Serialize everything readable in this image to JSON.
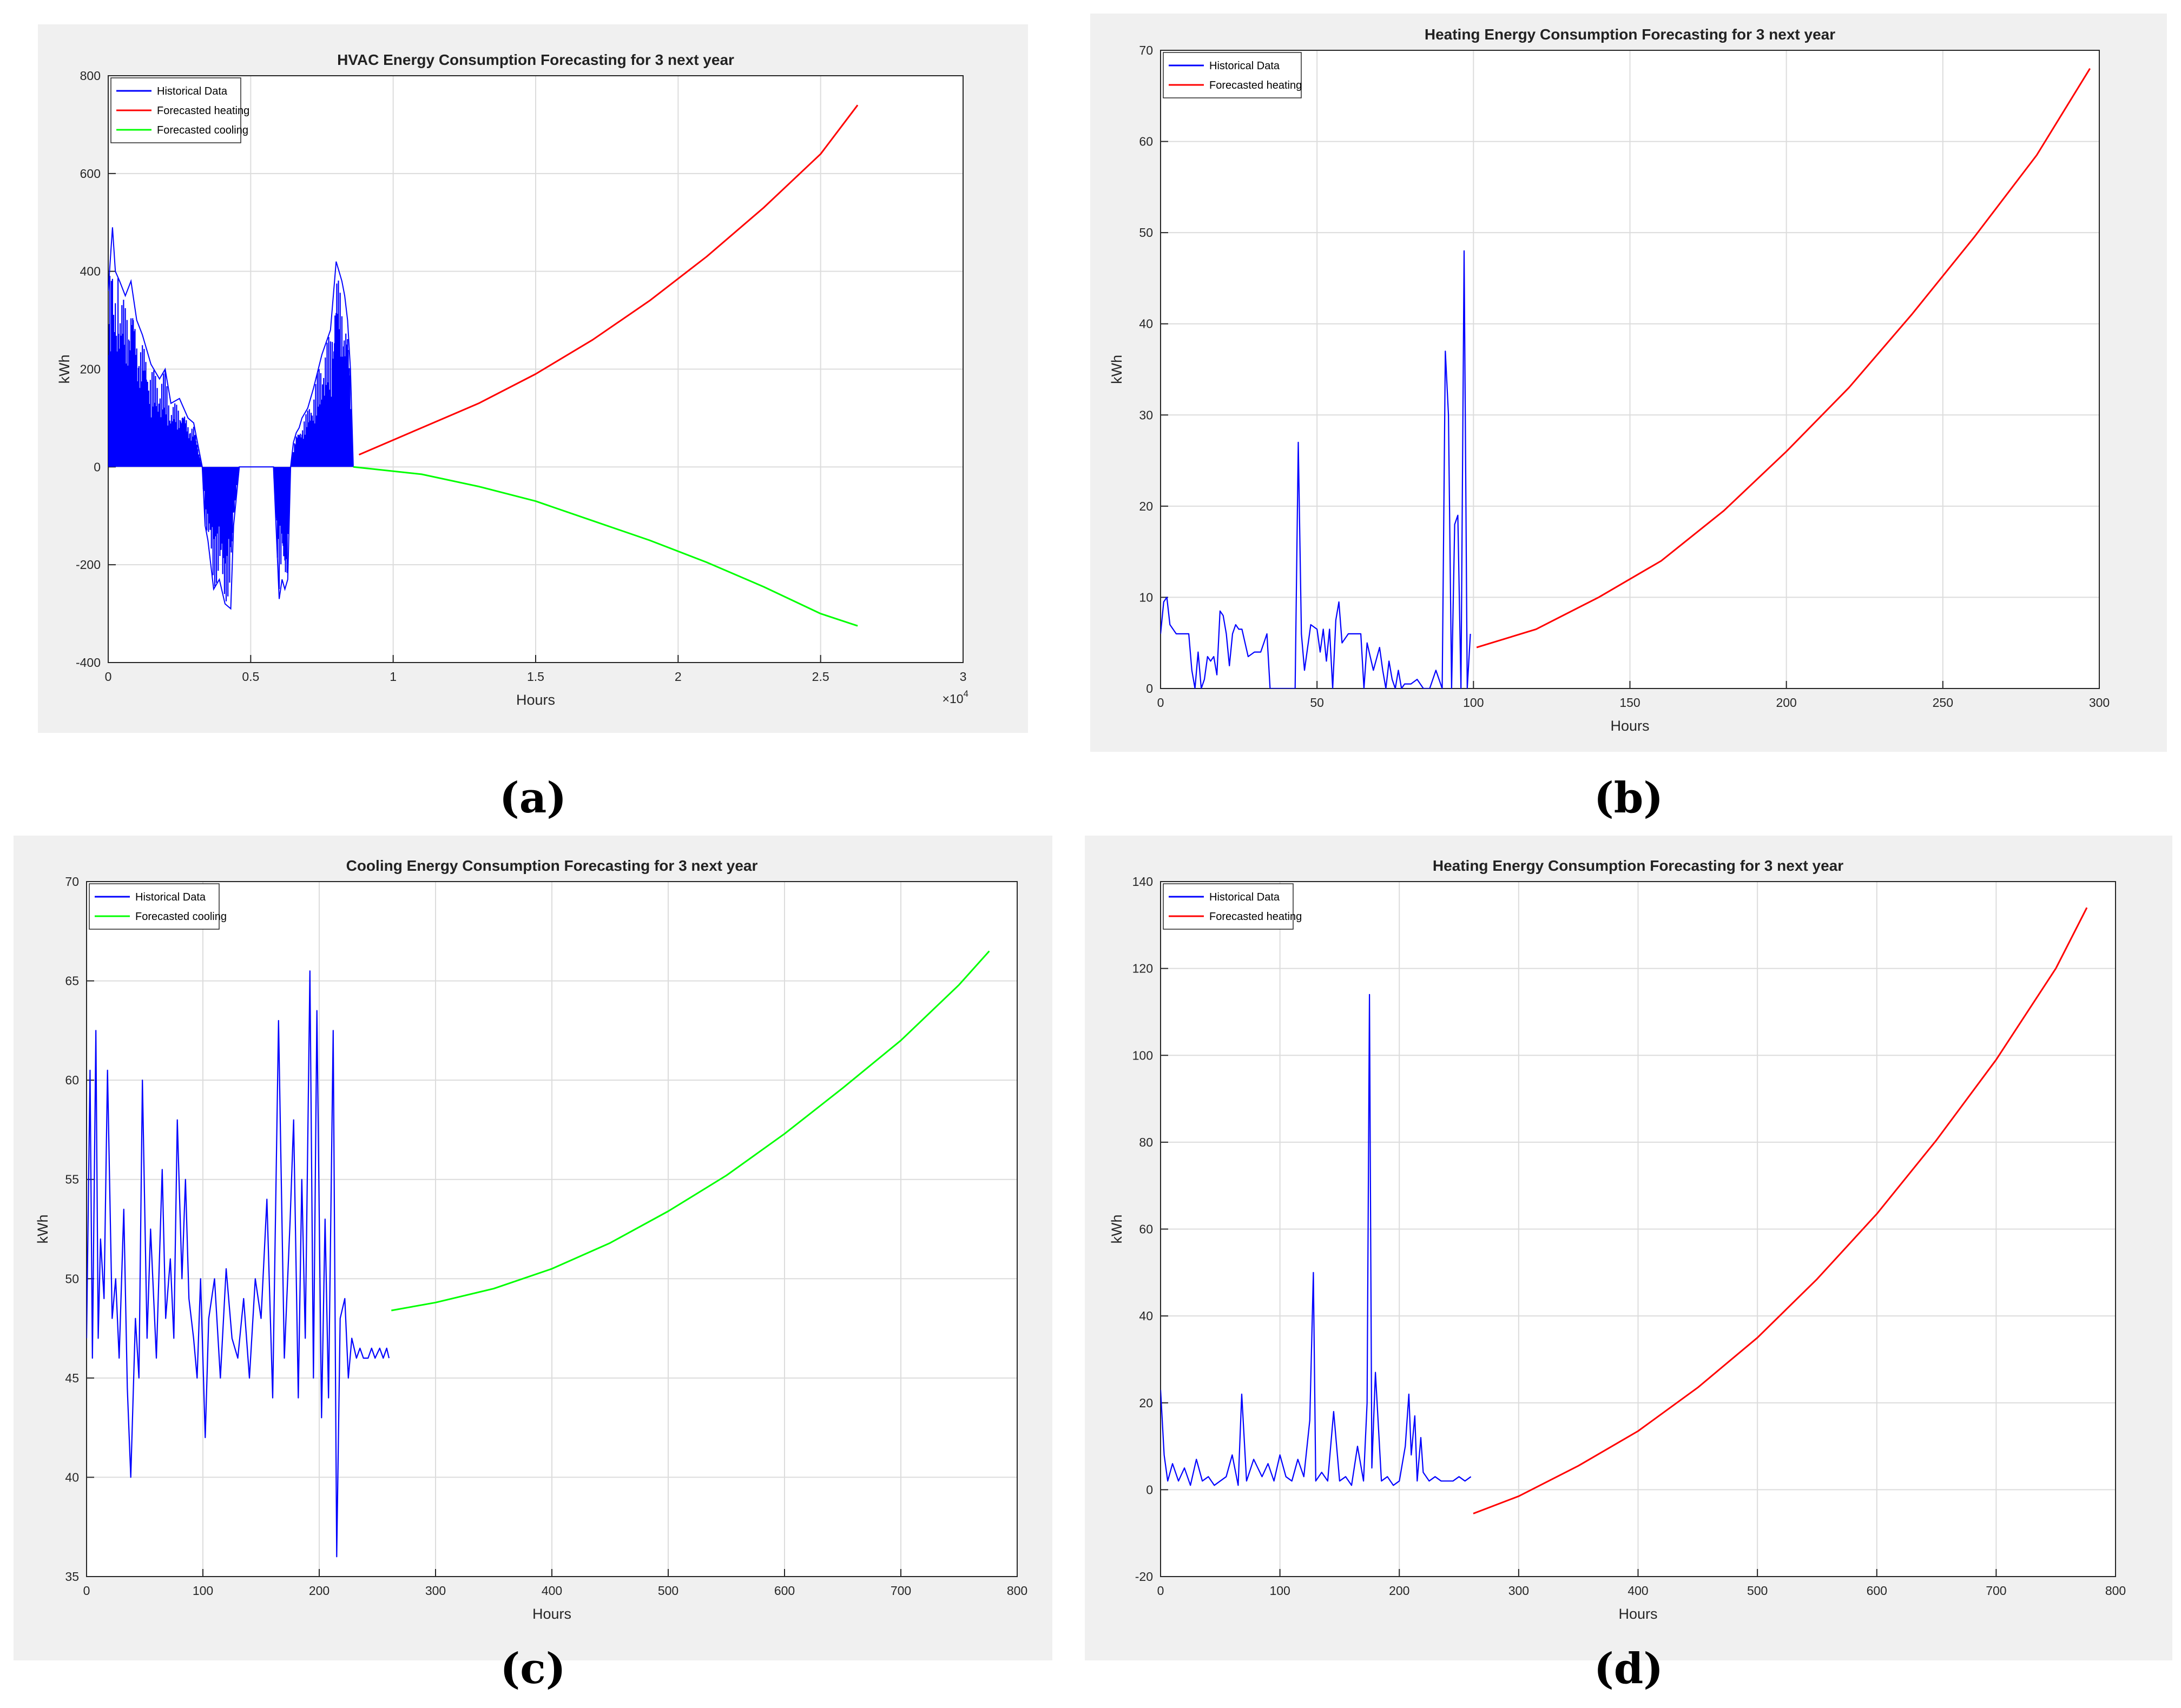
{
  "captions": [
    "(a)",
    "(b)",
    "(c)",
    "(d)"
  ],
  "chart_data": [
    {
      "id": "a",
      "type": "line",
      "title": "HVAC Energy Consumption Forecasting for 3 next year",
      "xlabel": "Hours",
      "ylabel": "kWh",
      "xlim": [
        0,
        30000
      ],
      "ylim": [
        -400,
        800
      ],
      "xticks": [
        0,
        5000,
        10000,
        15000,
        20000,
        25000,
        30000
      ],
      "xtick_labels": [
        "0",
        "0.5",
        "1",
        "1.5",
        "2",
        "2.5",
        "3"
      ],
      "x_exponent_label": "×10",
      "x_exponent_power": "4",
      "yticks": [
        -400,
        -200,
        0,
        200,
        400,
        600,
        800
      ],
      "grid": true,
      "legend_position": "top-left",
      "series": [
        {
          "name": "Historical Data",
          "color": "#0000ff",
          "style": "dense",
          "x": [
            0,
            150,
            250,
            400,
            600,
            800,
            1000,
            1200,
            1500,
            1800,
            2000,
            2200,
            2500,
            2800,
            3000,
            3200,
            3300,
            3400,
            3500,
            3700,
            3900,
            4100,
            4300,
            4400,
            4500,
            4600,
            4700,
            5000,
            5500,
            5800,
            6000,
            6100,
            6200,
            6300,
            6400,
            6500,
            6600,
            6700,
            6800,
            7000,
            7200,
            7500,
            7800,
            8000,
            8100,
            8200,
            8300,
            8400,
            8500,
            8600
          ],
          "y": [
            360,
            490,
            400,
            380,
            350,
            380,
            300,
            270,
            210,
            180,
            200,
            130,
            140,
            100,
            90,
            30,
            0,
            -120,
            -150,
            -250,
            -230,
            -280,
            -290,
            -120,
            -60,
            0,
            0,
            0,
            0,
            0,
            -270,
            -230,
            -250,
            -230,
            0,
            50,
            70,
            80,
            100,
            120,
            160,
            230,
            280,
            420,
            400,
            380,
            350,
            300,
            200,
            0
          ]
        },
        {
          "name": "Forecasted heating",
          "color": "#ff0000",
          "style": "smooth",
          "x": [
            8800,
            11000,
            13000,
            15000,
            17000,
            19000,
            21000,
            23000,
            25000,
            26300
          ],
          "y": [
            25,
            80,
            130,
            190,
            260,
            340,
            430,
            530,
            640,
            740
          ]
        },
        {
          "name": "Forecasted cooling",
          "color": "#00ff00",
          "style": "smooth",
          "x": [
            8600,
            11000,
            13000,
            15000,
            17000,
            19000,
            21000,
            23000,
            25000,
            26300
          ],
          "y": [
            0,
            -15,
            -40,
            -70,
            -110,
            -150,
            -195,
            -245,
            -300,
            -325
          ]
        }
      ]
    },
    {
      "id": "b",
      "type": "line",
      "title": "Heating Energy Consumption Forecasting for 3 next year",
      "xlabel": "Hours",
      "ylabel": "kWh",
      "xlim": [
        0,
        300
      ],
      "ylim": [
        0,
        70
      ],
      "xticks": [
        0,
        50,
        100,
        150,
        200,
        250,
        300
      ],
      "xtick_labels": [
        "0",
        "50",
        "100",
        "150",
        "200",
        "250",
        "300"
      ],
      "yticks": [
        0,
        10,
        20,
        30,
        40,
        50,
        60,
        70
      ],
      "grid": true,
      "legend_position": "top-left",
      "series": [
        {
          "name": "Historical Data",
          "color": "#0000ff",
          "style": "line",
          "x": [
            0,
            1,
            2,
            3,
            4,
            5,
            7,
            9,
            10,
            11,
            12,
            13,
            14,
            15,
            16,
            17,
            18,
            19,
            20,
            21,
            22,
            23,
            24,
            25,
            26,
            28,
            30,
            32,
            33,
            34,
            35,
            38,
            40,
            42,
            43,
            44,
            45,
            46,
            48,
            50,
            51,
            52,
            53,
            54,
            55,
            56,
            57,
            58,
            60,
            62,
            63,
            64,
            65,
            66,
            68,
            70,
            71,
            72,
            73,
            74,
            75,
            76,
            77,
            78,
            80,
            82,
            84,
            86,
            88,
            90,
            91,
            92,
            93,
            94,
            95,
            96,
            97,
            98,
            99
          ],
          "y": [
            6,
            9.5,
            10,
            7,
            6.5,
            6,
            6,
            6,
            2,
            0,
            4,
            0,
            1,
            3.5,
            3,
            3.5,
            1.5,
            8.5,
            8,
            6,
            2.5,
            6,
            7,
            6.5,
            6.5,
            3.5,
            4,
            4,
            5,
            6,
            0,
            0,
            0,
            0,
            0,
            27,
            6,
            2,
            7,
            6.5,
            4,
            6.5,
            3,
            6.5,
            0,
            7.5,
            9.5,
            5,
            6,
            6,
            6,
            6,
            0,
            5,
            2,
            4.5,
            2,
            0,
            3,
            1,
            0,
            2,
            0,
            0.5,
            0.5,
            1,
            0,
            0,
            2,
            0,
            37,
            30,
            0,
            18,
            19,
            0,
            48,
            0,
            6
          ]
        },
        {
          "name": "Forecasted heating",
          "color": "#ff0000",
          "style": "smooth",
          "x": [
            101,
            120,
            140,
            160,
            180,
            200,
            220,
            240,
            260,
            280,
            297
          ],
          "y": [
            4.5,
            6.5,
            10,
            14,
            19.5,
            26,
            33,
            41,
            49.5,
            58.5,
            68
          ]
        }
      ]
    },
    {
      "id": "c",
      "type": "line",
      "title": "Cooling Energy Consumption Forecasting for 3 next year",
      "xlabel": "Hours",
      "ylabel": "kWh",
      "xlim": [
        0,
        800
      ],
      "ylim": [
        35,
        70
      ],
      "xticks": [
        0,
        100,
        200,
        300,
        400,
        500,
        600,
        700,
        800
      ],
      "xtick_labels": [
        "0",
        "100",
        "200",
        "300",
        "400",
        "500",
        "600",
        "700",
        "800"
      ],
      "yticks": [
        35,
        40,
        45,
        50,
        55,
        60,
        65,
        70
      ],
      "grid": true,
      "legend_position": "top-left",
      "series": [
        {
          "name": "Historical Data",
          "color": "#0000ff",
          "style": "line",
          "x": [
            0,
            3,
            5,
            8,
            10,
            12,
            15,
            18,
            22,
            25,
            28,
            32,
            35,
            38,
            42,
            45,
            48,
            52,
            55,
            60,
            65,
            68,
            72,
            75,
            78,
            82,
            85,
            88,
            92,
            95,
            98,
            102,
            105,
            110,
            115,
            120,
            125,
            130,
            135,
            140,
            145,
            150,
            155,
            160,
            165,
            170,
            175,
            178,
            182,
            185,
            188,
            192,
            195,
            198,
            202,
            205,
            208,
            212,
            215,
            218,
            222,
            225,
            228,
            232,
            235,
            238,
            242,
            245,
            248,
            252,
            255,
            258,
            260
          ],
          "y": [
            47,
            60.5,
            46,
            62.5,
            47,
            52,
            49,
            60.5,
            48,
            50,
            46,
            53.5,
            44.5,
            40,
            48,
            45,
            60,
            47,
            52.5,
            46,
            55.5,
            48,
            51,
            47,
            58,
            50,
            55,
            49,
            47,
            45,
            50,
            42,
            48,
            50,
            45,
            50.5,
            47,
            46,
            49,
            45,
            50,
            48,
            54,
            44,
            63,
            46,
            53,
            58,
            44,
            55,
            47,
            65.5,
            45,
            63.5,
            43,
            53,
            44,
            62.5,
            36,
            48,
            49,
            45,
            47,
            46,
            46.5,
            46,
            46,
            46.5,
            46,
            46.5,
            46,
            46.5,
            46
          ]
        },
        {
          "name": "Forecasted cooling",
          "color": "#00ff00",
          "style": "smooth",
          "x": [
            262,
            300,
            350,
            400,
            450,
            500,
            550,
            600,
            650,
            700,
            750,
            776
          ],
          "y": [
            48.4,
            48.8,
            49.5,
            50.5,
            51.8,
            53.4,
            55.2,
            57.3,
            59.6,
            62,
            64.8,
            66.5
          ]
        }
      ]
    },
    {
      "id": "d",
      "type": "line",
      "title": "Heating Energy Consumption Forecasting for 3 next year",
      "xlabel": "Hours",
      "ylabel": "kWh",
      "xlim": [
        0,
        800
      ],
      "ylim": [
        -20,
        140
      ],
      "xticks": [
        0,
        100,
        200,
        300,
        400,
        500,
        600,
        700,
        800
      ],
      "xtick_labels": [
        "0",
        "100",
        "200",
        "300",
        "400",
        "500",
        "600",
        "700",
        "800"
      ],
      "yticks": [
        -20,
        0,
        20,
        40,
        60,
        80,
        100,
        120,
        140
      ],
      "grid": true,
      "legend_position": "top-left",
      "series": [
        {
          "name": "Historical Data",
          "color": "#0000ff",
          "style": "line",
          "x": [
            0,
            3,
            6,
            10,
            15,
            20,
            25,
            30,
            35,
            40,
            45,
            50,
            55,
            60,
            65,
            68,
            72,
            78,
            85,
            90,
            95,
            100,
            105,
            110,
            115,
            120,
            125,
            128,
            130,
            135,
            140,
            145,
            150,
            155,
            160,
            165,
            170,
            173,
            175,
            177,
            180,
            185,
            190,
            195,
            200,
            205,
            208,
            210,
            213,
            215,
            218,
            220,
            225,
            230,
            235,
            240,
            245,
            250,
            255,
            260
          ],
          "y": [
            23,
            8,
            2,
            6,
            2,
            5,
            1,
            7,
            2,
            3,
            1,
            2,
            3,
            8,
            1,
            22,
            2,
            7,
            3,
            6,
            2,
            8,
            3,
            2,
            7,
            3,
            16,
            50,
            2,
            4,
            2,
            18,
            2,
            3,
            1,
            10,
            2,
            20,
            114,
            5,
            27,
            2,
            3,
            1,
            2,
            10,
            22,
            8,
            17,
            2,
            12,
            4,
            2,
            3,
            2,
            2,
            2,
            3,
            2,
            3
          ]
        },
        {
          "name": "Forecasted heating",
          "color": "#ff0000",
          "style": "smooth",
          "x": [
            262,
            300,
            350,
            400,
            450,
            500,
            550,
            600,
            650,
            700,
            750,
            776
          ],
          "y": [
            -5.5,
            -1.5,
            5.5,
            13.5,
            23.5,
            35,
            48.5,
            63.5,
            80.5,
            99,
            120,
            134
          ]
        }
      ]
    }
  ]
}
